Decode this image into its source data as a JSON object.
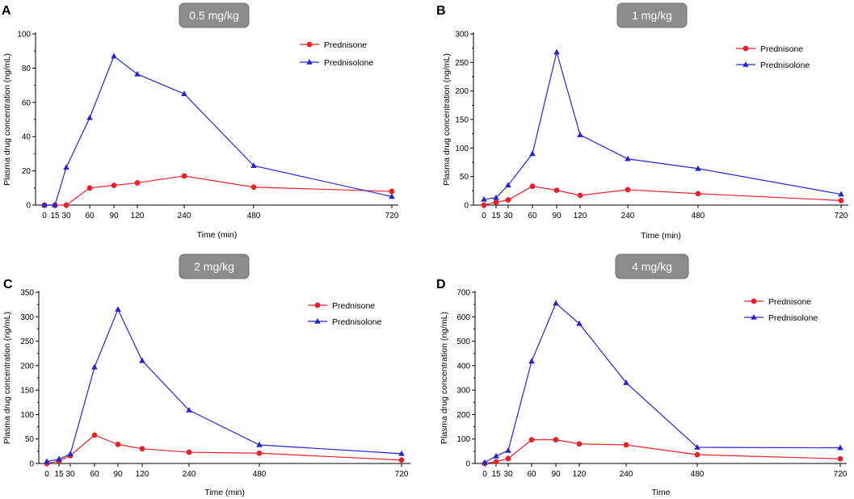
{
  "figure": {
    "panels": [
      "A",
      "B",
      "C",
      "D"
    ]
  },
  "colors": {
    "prednisone": "#e8222a",
    "prednisolone": "#2626c8",
    "title_box": "#8c8c8c",
    "title_border": "#6e6e6e"
  },
  "chart_data": [
    {
      "panel": "A",
      "type": "line",
      "title": "0.5 mg/kg",
      "xlabel": "Time (min)",
      "ylabel": "Plasma drug concentration (ng/mL)",
      "x_tick_labels": [
        "0",
        "15",
        "30",
        "60",
        "90",
        "120",
        "240",
        "480",
        "720"
      ],
      "ylim": [
        0,
        100
      ],
      "y_ticks": [
        0,
        20,
        40,
        60,
        80,
        100
      ],
      "legend_position": "top-right",
      "series": [
        {
          "name": "Prednisone",
          "marker": "circle",
          "values": [
            0,
            0,
            0,
            10,
            11.5,
            13,
            17,
            10.5,
            8
          ]
        },
        {
          "name": "Prednisolone",
          "marker": "triangle",
          "values": [
            0,
            0,
            22,
            51,
            87,
            76.5,
            65,
            23,
            5
          ]
        }
      ]
    },
    {
      "panel": "B",
      "type": "line",
      "title": "1 mg/kg",
      "xlabel": "Time (min)",
      "ylabel": "Plasma drug concentration (ng/mL)",
      "x_tick_labels": [
        "0",
        "15",
        "30",
        "60",
        "90",
        "120",
        "240",
        "480",
        "720"
      ],
      "ylim": [
        0,
        300
      ],
      "y_ticks": [
        0,
        50,
        100,
        150,
        200,
        250,
        300
      ],
      "legend_position": "top-right",
      "series": [
        {
          "name": "Prednisone",
          "marker": "circle",
          "values": [
            0,
            5,
            9,
            33,
            26,
            17,
            27,
            20,
            8
          ]
        },
        {
          "name": "Prednisolone",
          "marker": "triangle",
          "values": [
            10,
            13,
            35,
            90,
            268,
            123,
            81,
            64,
            19
          ]
        }
      ]
    },
    {
      "panel": "C",
      "type": "line",
      "title": "2 mg/kg",
      "xlabel": "Time (min)",
      "ylabel": "Plasma drug concentration (ng/mL)",
      "x_tick_labels": [
        "0",
        "15",
        "30",
        "60",
        "90",
        "120",
        "240",
        "480",
        "720"
      ],
      "ylim": [
        0,
        350
      ],
      "y_ticks": [
        0,
        50,
        100,
        150,
        200,
        250,
        300,
        350
      ],
      "legend_position": "top-right",
      "series": [
        {
          "name": "Prednisone",
          "marker": "circle",
          "values": [
            0,
            5,
            16,
            58,
            39,
            30,
            23,
            21,
            7
          ]
        },
        {
          "name": "Prednisolone",
          "marker": "triangle",
          "values": [
            4,
            9,
            19,
            197,
            315,
            210,
            109,
            38,
            20
          ]
        }
      ]
    },
    {
      "panel": "D",
      "type": "line",
      "title": "4 mg/kg",
      "xlabel": "Time",
      "ylabel": "Plasma drug concentration (ng/mL)",
      "x_tick_labels": [
        "0",
        "15",
        "30",
        "60",
        "90",
        "120",
        "240",
        "480",
        "720"
      ],
      "ylim": [
        0,
        700
      ],
      "y_ticks": [
        0,
        100,
        200,
        300,
        400,
        500,
        600,
        700
      ],
      "legend_position": "top-right",
      "series": [
        {
          "name": "Prednisone",
          "marker": "circle",
          "values": [
            0,
            7,
            20,
            97,
            97,
            80,
            76,
            36,
            19
          ]
        },
        {
          "name": "Prednisolone",
          "marker": "triangle",
          "values": [
            4,
            30,
            53,
            418,
            655,
            572,
            330,
            66,
            64
          ]
        }
      ]
    }
  ]
}
